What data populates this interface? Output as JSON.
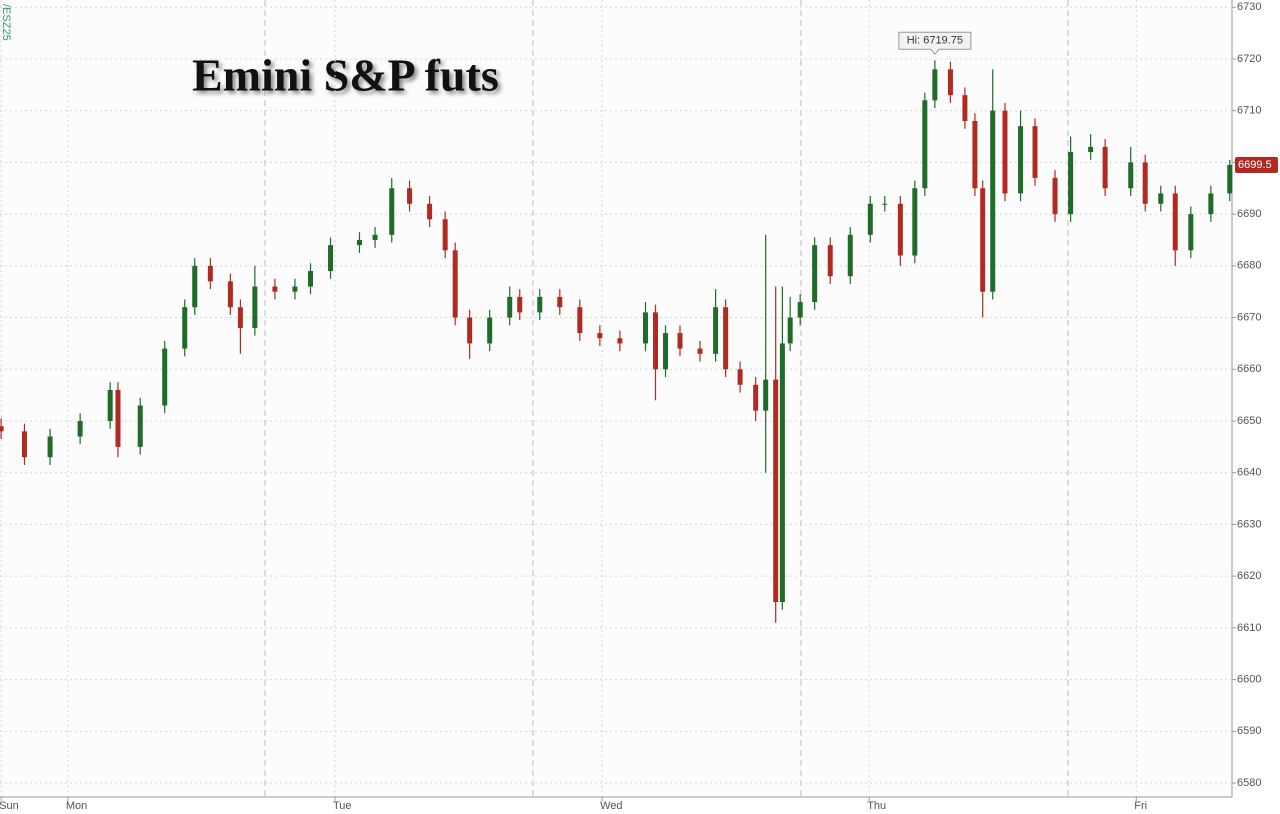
{
  "chart_data": {
    "type": "candlestick",
    "title": "Emini S&P futs",
    "symbol": "/ESZ25",
    "up_color": "#1e6b2a",
    "down_color": "#b02a22",
    "grid": true,
    "xlim": [
      -6.1,
      104.6
    ],
    "xticks": [
      {
        "value": -6,
        "label": "Sun"
      },
      {
        "value": 0,
        "label": "Mon"
      },
      {
        "value": 24,
        "label": "Tue"
      },
      {
        "value": 48,
        "label": "Wed"
      },
      {
        "value": 72,
        "label": "Thu"
      },
      {
        "value": 96,
        "label": "Fri"
      }
    ],
    "ylim": [
      6577.3,
      6731.4
    ],
    "yticks": [
      6580,
      6590,
      6600,
      6610,
      6620,
      6630,
      6640,
      6650,
      6660,
      6670,
      6680,
      6690,
      6700,
      6710,
      6720,
      6730
    ],
    "x": [
      -6.0,
      -3.9,
      -1.6,
      1.1,
      3.8,
      4.5,
      6.5,
      8.7,
      10.5,
      11.4,
      12.8,
      14.6,
      15.5,
      16.8,
      18.6,
      20.4,
      21.8,
      23.6,
      26.2,
      27.6,
      29.1,
      30.7,
      32.5,
      33.9,
      34.8,
      36.1,
      37.9,
      39.7,
      40.6,
      42.4,
      44.2,
      46.0,
      47.8,
      49.6,
      51.9,
      52.8,
      53.7,
      55.0,
      56.8,
      58.2,
      59.1,
      60.4,
      61.8,
      62.7,
      63.6,
      64.2,
      64.9,
      65.8,
      67.1,
      68.5,
      70.3,
      72.1,
      73.4,
      74.8,
      76.1,
      77.0,
      77.9,
      79.3,
      80.6,
      81.5,
      82.2,
      83.1,
      84.2,
      85.6,
      86.9,
      88.7,
      90.1,
      91.9,
      93.2,
      95.5,
      96.8,
      98.2,
      99.5,
      100.9,
      102.7,
      104.4
    ],
    "open": [
      6649,
      6648,
      6643,
      6647,
      6650,
      6656,
      6645,
      6653,
      6664,
      6672,
      6680,
      6677,
      6672,
      6668,
      6676,
      6675,
      6676,
      6679,
      6684,
      6685,
      6686,
      6695,
      6692,
      6689,
      6683,
      6670,
      6665,
      6670,
      6674,
      6671,
      6674,
      6672,
      6667,
      6666,
      6665,
      6671,
      6660,
      6667,
      6664,
      6663,
      6672,
      6660,
      6657,
      6652,
      6658,
      6615,
      6665,
      6670,
      6673,
      6684,
      6678,
      6686,
      6692,
      6692,
      6682,
      6695,
      6712,
      6718,
      6713,
      6708,
      6695,
      6675,
      6710,
      6694,
      6707,
      6697,
      6690,
      6702,
      6703,
      6695,
      6700,
      6692,
      6694,
      6683,
      6690,
      6694
    ],
    "high": [
      6650.5,
      6649.5,
      6648.5,
      6651.5,
      6657.5,
      6657.5,
      6654.5,
      6665.5,
      6673.5,
      6681.5,
      6681.5,
      6678.5,
      6673.5,
      6680,
      6677.5,
      6677.5,
      6680.5,
      6685.5,
      6686.5,
      6687.5,
      6697,
      6696.5,
      6693.5,
      6690.5,
      6684.5,
      6671.5,
      6671.5,
      6676,
      6675.5,
      6675.5,
      6675.5,
      6673.5,
      6668.5,
      6667.5,
      6673,
      6672.5,
      6668.5,
      6668.5,
      6665.5,
      6675.5,
      6673.5,
      6661.5,
      6658.5,
      6686,
      6676,
      6676,
      6674,
      6674.5,
      6685.5,
      6685.5,
      6687.5,
      6693.5,
      6693.5,
      6693.5,
      6696.5,
      6713.5,
      6719.75,
      6719.5,
      6714.5,
      6709.5,
      6696.5,
      6718,
      6711.5,
      6710,
      6708.5,
      6698.5,
      6705,
      6705.5,
      6704.5,
      6703,
      6701.5,
      6695.5,
      6695.5,
      6691.5,
      6695.5,
      6700.5
    ],
    "low": [
      6646.5,
      6641.5,
      6641.5,
      6645.5,
      6648.5,
      6643,
      6643.5,
      6651.5,
      6662.5,
      6670.5,
      6675.5,
      6670.5,
      6663,
      6666.5,
      6673.5,
      6673.5,
      6674.5,
      6677.5,
      6682.5,
      6683.5,
      6684.5,
      6690.5,
      6687.5,
      6681.5,
      6668.5,
      6662,
      6663.5,
      6668.5,
      6669.5,
      6669.5,
      6670.5,
      6665.5,
      6664.5,
      6663.5,
      6663.5,
      6654,
      6658.5,
      6662.5,
      6661.5,
      6661.5,
      6658.5,
      6655.5,
      6650,
      6640,
      6611,
      6613.5,
      6663.5,
      6668.5,
      6671.5,
      6676.5,
      6676.5,
      6684.5,
      6690.5,
      6680,
      6680.5,
      6693.5,
      6710.5,
      6711.5,
      6706.5,
      6693.5,
      6670,
      6673.5,
      6692.5,
      6692.5,
      6695.5,
      6688.5,
      6688.5,
      6700.5,
      6693.5,
      6693.5,
      6690.5,
      6690.5,
      6680,
      6681.5,
      6688.5,
      6692.5
    ],
    "close": [
      6648,
      6643,
      6647,
      6650,
      6656,
      6645,
      6653,
      6664,
      6672,
      6680,
      6677,
      6672,
      6668,
      6676,
      6675,
      6676,
      6679,
      6684,
      6685,
      6686,
      6695,
      6692,
      6689,
      6683,
      6670,
      6665,
      6670,
      6674,
      6671,
      6674,
      6672,
      6667,
      6666,
      6665,
      6671,
      6660,
      6667,
      6664,
      6663,
      6672,
      6660,
      6657,
      6652,
      6658,
      6615,
      6665,
      6670,
      6673,
      6684,
      6678,
      6686,
      6692,
      6692,
      6682,
      6695,
      6712,
      6718,
      6713,
      6708,
      6695,
      6675,
      6710,
      6694,
      6707,
      6697,
      6690,
      6702,
      6703,
      6695,
      6700,
      6692,
      6694,
      6683,
      6690,
      6694,
      6699.5
    ],
    "annotations": [
      {
        "text": "Hi: 6719.75",
        "x": 77.9,
        "y": 6719.75
      }
    ],
    "last_price": 6699.5,
    "last_price_color": "#b02a22"
  }
}
